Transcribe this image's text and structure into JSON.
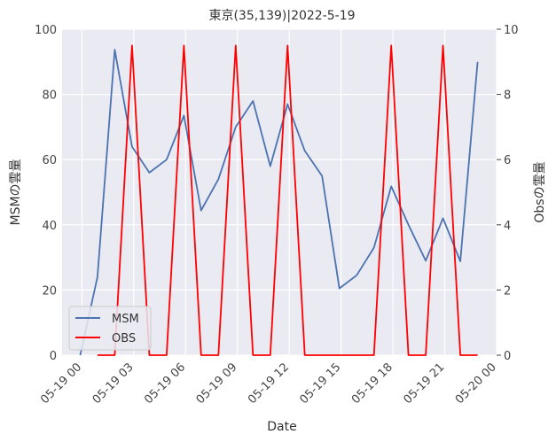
{
  "chart_data": {
    "type": "line",
    "title": "東京(35,139)|2022-5-19",
    "xlabel": "Date",
    "ylabel_left": "MSMの雲量",
    "ylabel_right": "Obsの雲量",
    "ylim_left": [
      0,
      100
    ],
    "ylim_right": [
      0,
      10
    ],
    "yticks_left": [
      0,
      20,
      40,
      60,
      80,
      100
    ],
    "yticks_right": [
      0,
      2,
      4,
      6,
      8,
      10
    ],
    "x_domain_hours": [
      -1.15,
      24.0
    ],
    "x_ticks": [
      {
        "hour": 0,
        "label": "05-19 00"
      },
      {
        "hour": 3,
        "label": "05-19 03"
      },
      {
        "hour": 6,
        "label": "05-19 06"
      },
      {
        "hour": 9,
        "label": "05-19 09"
      },
      {
        "hour": 12,
        "label": "05-19 12"
      },
      {
        "hour": 15,
        "label": "05-19 15"
      },
      {
        "hour": 18,
        "label": "05-19 18"
      },
      {
        "hour": 21,
        "label": "05-19 21"
      },
      {
        "hour": 24,
        "label": "05-20 00"
      }
    ],
    "grid": true,
    "legend_position": "lower-left",
    "series": [
      {
        "name": "MSM",
        "axis": "left",
        "color": "#4c72b0",
        "x_hours": [
          -0.1,
          0.9,
          1.9,
          2.9,
          3.9,
          4.9,
          5.9,
          6.9,
          7.9,
          8.9,
          9.9,
          10.9,
          11.9,
          12.9,
          13.9,
          14.9,
          15.9,
          16.9,
          17.9,
          18.9,
          19.9,
          20.9,
          21.9,
          22.9
        ],
        "values": [
          0,
          24,
          93.7,
          64,
          56,
          60,
          73.5,
          44.4,
          54,
          70,
          78,
          58,
          77,
          62.7,
          55,
          20.5,
          24.5,
          33,
          51.8,
          40,
          29,
          42,
          28.8,
          90
        ]
      },
      {
        "name": "OBS",
        "axis": "right",
        "color": "#ff0000",
        "x_hours": [
          0.9,
          1.9,
          2.9,
          3.9,
          4.9,
          5.9,
          6.9,
          7.9,
          8.9,
          9.9,
          10.9,
          11.9,
          12.9,
          13.9,
          14.9,
          15.9,
          16.9,
          17.9,
          18.9,
          19.9,
          20.9,
          21.9,
          22.9
        ],
        "values": [
          0,
          0,
          9.5,
          0,
          0,
          9.5,
          0,
          0,
          9.5,
          0,
          0,
          9.5,
          0,
          0,
          0,
          0,
          0,
          9.5,
          0,
          0,
          9.5,
          0,
          0
        ]
      }
    ]
  },
  "colors": {
    "plot_background": "#eaeaf2",
    "grid": "#ffffff",
    "msm_line": "#4c72b0",
    "obs_line": "#ff0000"
  }
}
